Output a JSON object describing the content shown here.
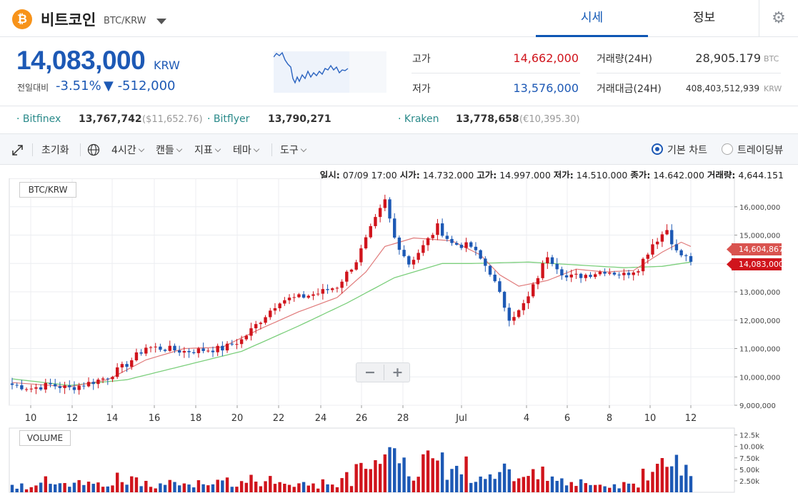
{
  "header": {
    "coin_symbol": "₿",
    "coin_name": "비트코인",
    "pair": "BTC/KRW",
    "tabs": [
      "시세",
      "정보"
    ],
    "settings_icon": "⚙"
  },
  "price": {
    "current": "14,083,000",
    "unit": "KRW",
    "change_label": "전일대비",
    "change_pct": "-3.51%",
    "change_abs": "▼ -512,000"
  },
  "stats": {
    "high_label": "고가",
    "high_value": "14,662,000",
    "low_label": "저가",
    "low_value": "13,576,000",
    "volume_label": "거래량(24H)",
    "volume_value": "28,905.179",
    "volume_unit": "BTC",
    "amount_label": "거래대금(24H)",
    "amount_value": "408,403,512,939",
    "amount_unit": "KRW"
  },
  "exchanges": [
    {
      "name": "Bitfinex",
      "value": "13,767,742",
      "sub": "($11,652.76)"
    },
    {
      "name": "Bitflyer",
      "value": "13,790,271",
      "sub": ""
    },
    {
      "name": "Kraken",
      "value": "13,778,658",
      "sub": "(€10,395.30)"
    }
  ],
  "toolbar": {
    "reset": "초기화",
    "interval": "4시간",
    "candle": "캔들",
    "indicator": "지표",
    "theme": "테마",
    "tools": "도구",
    "basic_chart": "기본 차트",
    "trading_view": "트레이딩뷰"
  },
  "ohlc": {
    "date_label": "일시:",
    "date": "07/09 17:00",
    "open_label": "시가:",
    "open": "14,732,000",
    "high_label": "고가:",
    "high": "14,997,000",
    "low_label": "저가:",
    "low": "14,510,000",
    "close_label": "종가:",
    "close": "14,642,000",
    "vol_label": "거래량:",
    "vol": "4,644.151"
  },
  "chart_labels": {
    "pair": "BTC/KRW",
    "volume": "VOLUME",
    "zoom_out": "−",
    "zoom_in": "+",
    "ma_tag": "14,604,867",
    "price_tag": "14,083,000"
  },
  "chart_data": {
    "type": "candlestick",
    "y_ticks": [
      "16,000,000",
      "15,000,000",
      "14,000,000",
      "13,000,000",
      "12,000,000",
      "11,000,000",
      "10,000,000",
      "9,000,000"
    ],
    "ylim": [
      9000000,
      16800000
    ],
    "x_ticks": [
      "10",
      "12",
      "14",
      "16",
      "18",
      "20",
      "22",
      "24",
      "26",
      "28",
      "Jul",
      "4",
      "6",
      "8",
      "10",
      "12"
    ],
    "close_path_key": [
      [
        0,
        9.72
      ],
      [
        4,
        9.6
      ],
      [
        8,
        9.72
      ],
      [
        12,
        9.6
      ],
      [
        16,
        9.78
      ],
      [
        20,
        10.0
      ],
      [
        24,
        10.45
      ],
      [
        28,
        11.05
      ],
      [
        32,
        11.0
      ],
      [
        36,
        10.9
      ],
      [
        40,
        10.95
      ],
      [
        44,
        11.0
      ],
      [
        48,
        11.3
      ],
      [
        52,
        12.0
      ],
      [
        56,
        12.7
      ],
      [
        60,
        12.8
      ],
      [
        64,
        12.95
      ],
      [
        68,
        13.2
      ],
      [
        72,
        14.1
      ],
      [
        75,
        15.2
      ],
      [
        78,
        16.2
      ],
      [
        80,
        14.9
      ],
      [
        83,
        14.0
      ],
      [
        86,
        14.6
      ],
      [
        89,
        15.3
      ],
      [
        92,
        14.7
      ],
      [
        96,
        14.6
      ],
      [
        100,
        13.7
      ],
      [
        104,
        12.1
      ],
      [
        106,
        12.3
      ],
      [
        108,
        12.8
      ],
      [
        112,
        14.3
      ],
      [
        116,
        13.5
      ],
      [
        120,
        13.6
      ],
      [
        124,
        13.75
      ],
      [
        128,
        13.6
      ],
      [
        131,
        13.85
      ],
      [
        134,
        14.7
      ],
      [
        137,
        15.2
      ],
      [
        139,
        14.4
      ],
      [
        142,
        14.1
      ]
    ],
    "ma_short_key": [
      [
        0,
        9.8
      ],
      [
        12,
        9.65
      ],
      [
        20,
        9.9
      ],
      [
        28,
        10.6
      ],
      [
        36,
        11.0
      ],
      [
        44,
        11.05
      ],
      [
        52,
        11.7
      ],
      [
        60,
        12.3
      ],
      [
        68,
        12.8
      ],
      [
        74,
        13.7
      ],
      [
        78,
        14.6
      ],
      [
        84,
        14.9
      ],
      [
        92,
        14.8
      ],
      [
        98,
        14.3
      ],
      [
        102,
        13.6
      ],
      [
        106,
        13.2
      ],
      [
        112,
        13.4
      ],
      [
        118,
        13.8
      ],
      [
        124,
        13.7
      ],
      [
        130,
        13.75
      ],
      [
        136,
        14.4
      ],
      [
        140,
        14.75
      ],
      [
        142,
        14.6
      ]
    ],
    "ma_long_key": [
      [
        0,
        9.93
      ],
      [
        12,
        9.7
      ],
      [
        24,
        9.9
      ],
      [
        36,
        10.4
      ],
      [
        48,
        10.9
      ],
      [
        60,
        11.8
      ],
      [
        70,
        12.6
      ],
      [
        80,
        13.5
      ],
      [
        90,
        14.0
      ],
      [
        96,
        14.0
      ],
      [
        108,
        14.05
      ],
      [
        118,
        13.95
      ],
      [
        128,
        13.85
      ],
      [
        136,
        13.9
      ],
      [
        142,
        14.05
      ]
    ],
    "vol_ticks": [
      "12.5k",
      "10.00k",
      "7.50k",
      "5.00k",
      "2.50k"
    ],
    "vol_ylim": [
      0,
      14000
    ]
  }
}
